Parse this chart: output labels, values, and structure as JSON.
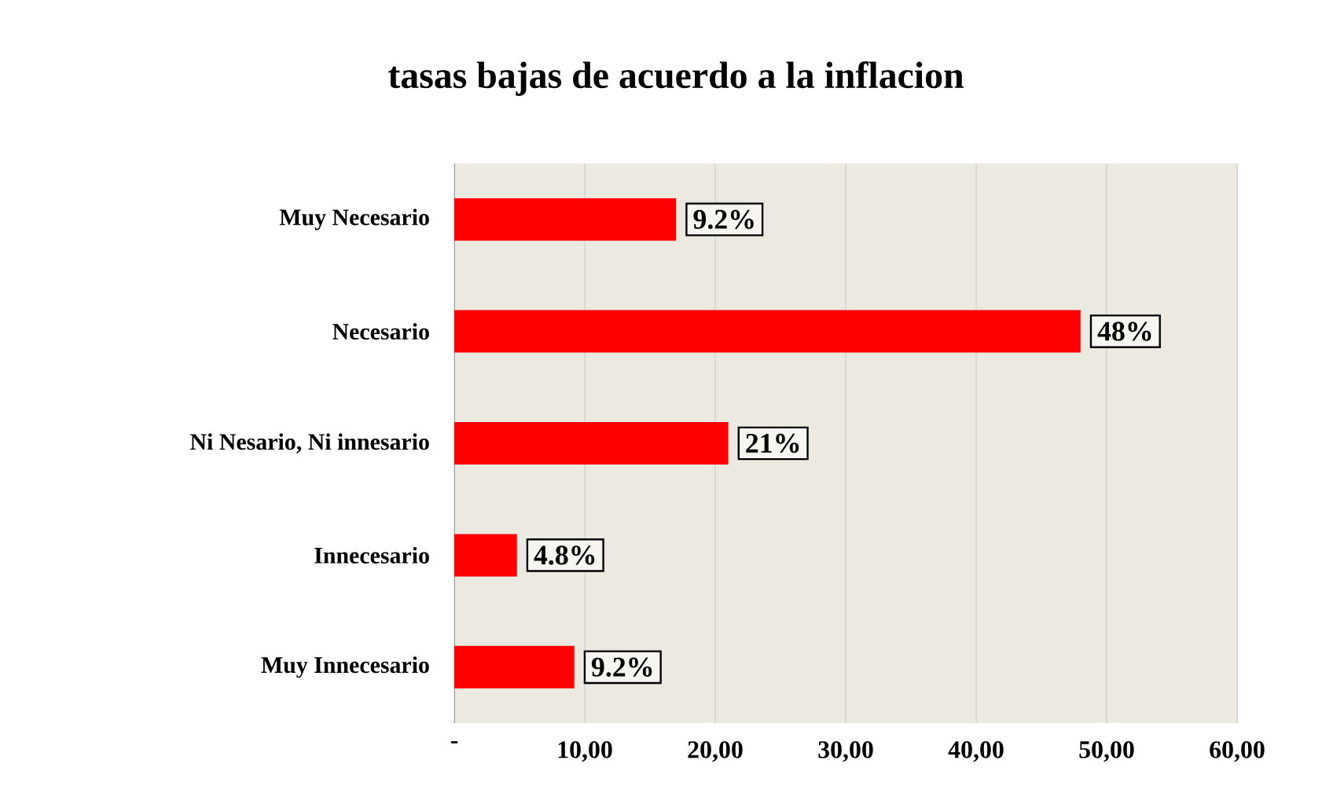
{
  "chart_data": {
    "type": "bar",
    "orientation": "horizontal",
    "title": "tasas bajas de acuerdo a la inflacion",
    "categories": [
      "Muy Necesario",
      "Necesario",
      "Ni Nesario, Ni innesario",
      "Innecesario",
      "Muy Innecesario"
    ],
    "values": [
      17,
      48,
      21,
      4.8,
      9.2
    ],
    "value_labels": [
      null,
      "48%",
      "21%",
      "4.8%",
      "9.2%"
    ],
    "annotations": [
      {
        "text": "9.2%",
        "x": 17,
        "y": "Muy Necesario"
      }
    ],
    "color": "#ff0000",
    "xlim": [
      0,
      60
    ],
    "xticks": [
      {
        "value": 0,
        "label": "-"
      },
      {
        "value": 10,
        "label": "10,00"
      },
      {
        "value": 20,
        "label": "20,00"
      },
      {
        "value": 30,
        "label": "30,00"
      },
      {
        "value": 40,
        "label": "40,00"
      },
      {
        "value": 50,
        "label": "50,00"
      },
      {
        "value": 60,
        "label": "60,00"
      }
    ],
    "grid": "x"
  }
}
